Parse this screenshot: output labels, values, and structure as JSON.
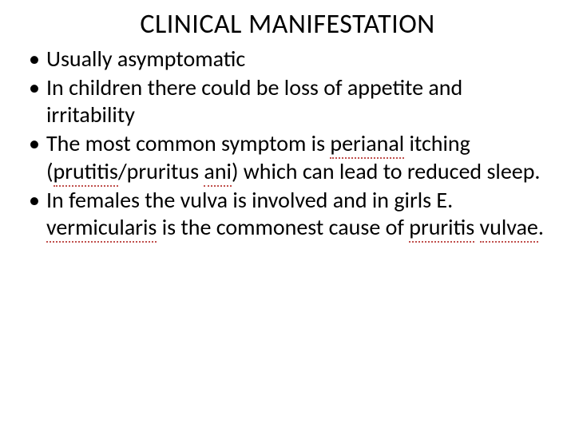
{
  "slide": {
    "title": "CLINICAL MANIFESTATION",
    "title_fontsize": 34,
    "title_color": "#000000",
    "body_fontsize": 28,
    "body_color": "#000000",
    "body_lineheight": 1.22,
    "spell_underline_color": "#c0504d",
    "background_color": "#ffffff",
    "bullets": [
      {
        "text": "Usually asymptomatic"
      },
      {
        "text": "In children there could be loss of appetite and irritability"
      },
      {
        "parts": [
          {
            "text": "The most common symptom is "
          },
          {
            "text": "perianal",
            "spell_err": true
          },
          {
            "text": " itching ("
          },
          {
            "text": "prutitis",
            "spell_err": true
          },
          {
            "text": "/pruritus "
          },
          {
            "text": "ani",
            "spell_err": true
          },
          {
            "text": ") which can lead to reduced sleep."
          }
        ]
      },
      {
        "parts": [
          {
            "text": "In females the vulva is involved and in girls E. "
          },
          {
            "text": "vermicularis",
            "spell_err": true
          },
          {
            "text": " is the commonest cause of "
          },
          {
            "text": "pruritis",
            "spell_err": true
          },
          {
            "text": " "
          },
          {
            "text": "vulvae",
            "spell_err": true
          },
          {
            "text": "."
          }
        ]
      }
    ]
  }
}
